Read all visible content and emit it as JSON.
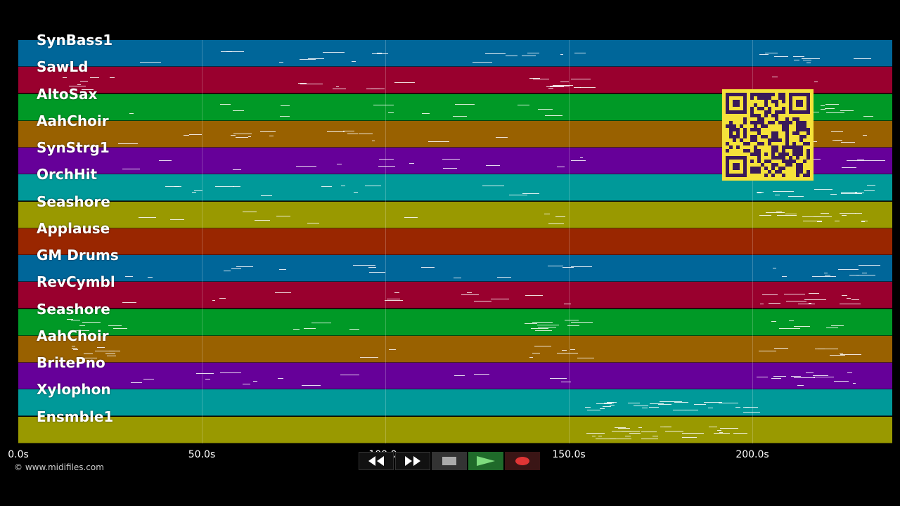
{
  "tracks": [
    {
      "name": "SynBass1",
      "color": "#006699"
    },
    {
      "name": "SawLd",
      "color": "#99002e"
    },
    {
      "name": "AltoSax",
      "color": "#009926"
    },
    {
      "name": "AahChoir",
      "color": "#996100"
    },
    {
      "name": "SynStrg1",
      "color": "#660099"
    },
    {
      "name": "OrchHit",
      "color": "#009999"
    },
    {
      "name": "Seashore",
      "color": "#999900"
    },
    {
      "name": "Applause",
      "color": "#992600"
    },
    {
      "name": "GM Drums",
      "color": "#006699"
    },
    {
      "name": "RevCymbl",
      "color": "#99002e"
    },
    {
      "name": "Seashore",
      "color": "#009926"
    },
    {
      "name": "AahChoir",
      "color": "#996100"
    },
    {
      "name": "BritePno",
      "color": "#660099"
    },
    {
      "name": "Xylophon",
      "color": "#009999"
    },
    {
      "name": "Ensmble1",
      "color": "#999900"
    }
  ],
  "axis": {
    "ticks": [
      "0.0s",
      "50.0s",
      "100.0s",
      "150.0s",
      "200.0s"
    ]
  },
  "copyright": "© www.midifiles.com",
  "transport": {
    "rewind_icon": "rewind-icon",
    "forward_icon": "fast-forward-icon",
    "stop_icon": "stop-icon",
    "play_icon": "play-icon",
    "record_icon": "record-icon"
  }
}
